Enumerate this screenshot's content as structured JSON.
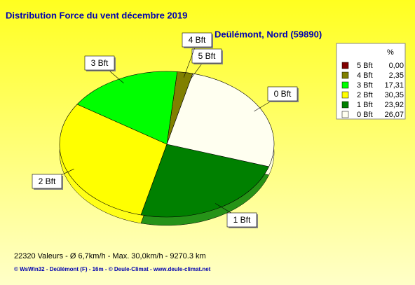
{
  "chart_data": {
    "type": "pie",
    "title": "Distribution Force du vent  décembre 2019",
    "subtitle": "Deülémont, Nord (59890)",
    "legend_header": "%",
    "categories": [
      "5 Bft",
      "4 Bft",
      "3 Bft",
      "2 Bft",
      "1 Bft",
      "0 Bft"
    ],
    "values": [
      0.0,
      2.35,
      17.31,
      30.35,
      23.92,
      26.07
    ],
    "value_labels": [
      "0,00",
      "2,35",
      "17,31",
      "30,35",
      "23,92",
      "26,07"
    ],
    "colors": [
      "#800000",
      "#808000",
      "#00ff00",
      "#ffff00",
      "#008000",
      "#fffff0"
    ],
    "legend": "top-right",
    "footer": "22320 Valeurs   -   Ø 6,7km/h  -  Max. 30,0km/h   -   9270.3 km",
    "credits": "© WsWin32  -  Deûlémont (F) - 16m  -  © Deule-Climat - www.deule-climat.net"
  }
}
